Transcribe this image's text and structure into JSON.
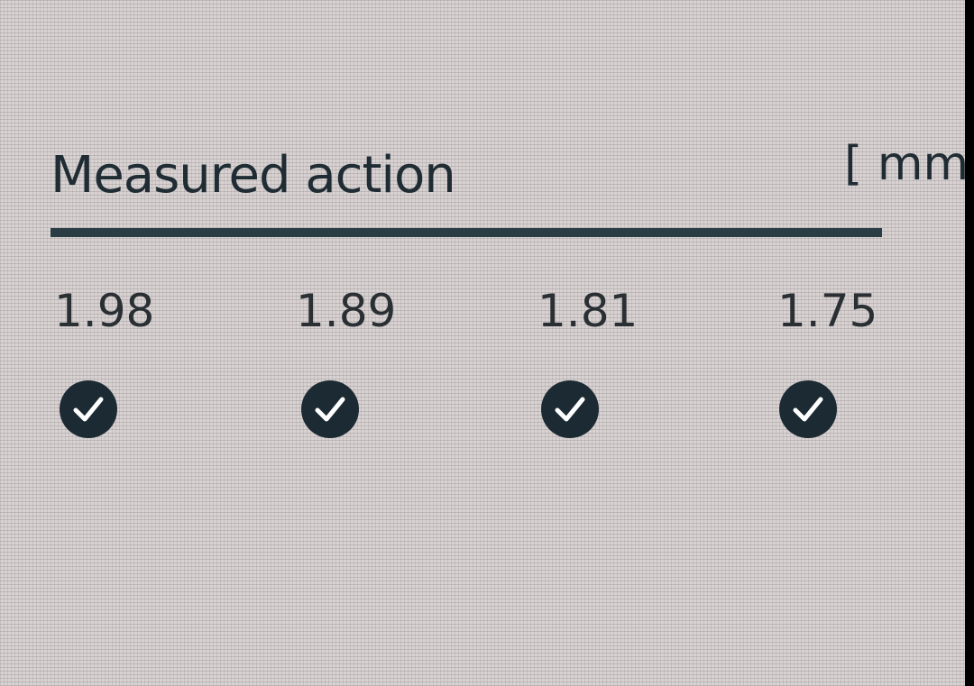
{
  "section": {
    "title": "Measured action",
    "unit": "[ mm"
  },
  "measurements": [
    {
      "value": "1.98",
      "status": "check-icon"
    },
    {
      "value": "1.89",
      "status": "check-icon"
    },
    {
      "value": "1.81",
      "status": "check-icon"
    },
    {
      "value": "1.75",
      "status": "check-icon"
    }
  ]
}
